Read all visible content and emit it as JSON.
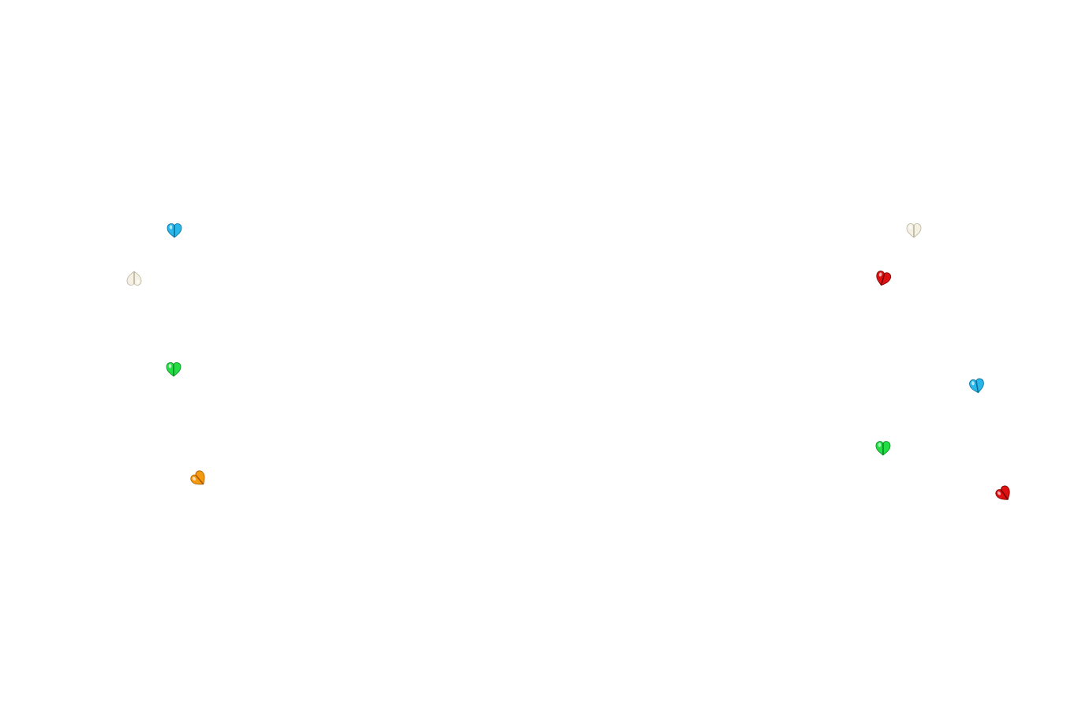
{
  "background": "#ffffff",
  "beads": [
    {
      "name": "bead-left-blue",
      "color": "#29b6e8",
      "shade": "#0a6f99",
      "icon": "heart-bead-icon"
    },
    {
      "name": "bead-left-white",
      "color": "#f4f1e4",
      "shade": "#b8b39a",
      "icon": "heart-bead-icon"
    },
    {
      "name": "bead-left-green",
      "color": "#22dd44",
      "shade": "#0a8a22",
      "icon": "heart-bead-icon"
    },
    {
      "name": "bead-left-orange",
      "color": "#f59a10",
      "shade": "#a85a00",
      "icon": "heart-bead-icon"
    },
    {
      "name": "bead-right-white",
      "color": "#f4f1e4",
      "shade": "#b8b39a",
      "icon": "heart-bead-icon"
    },
    {
      "name": "bead-right-red",
      "color": "#dd1111",
      "shade": "#7a0000",
      "icon": "heart-bead-icon"
    },
    {
      "name": "bead-right-blue",
      "color": "#29b6e8",
      "shade": "#0a6f99",
      "icon": "heart-bead-icon"
    },
    {
      "name": "bead-right-green",
      "color": "#22dd44",
      "shade": "#0a8a22",
      "icon": "heart-bead-icon"
    },
    {
      "name": "bead-right-red-lower",
      "color": "#dd1111",
      "shade": "#7a0000",
      "icon": "heart-bead-icon"
    }
  ]
}
